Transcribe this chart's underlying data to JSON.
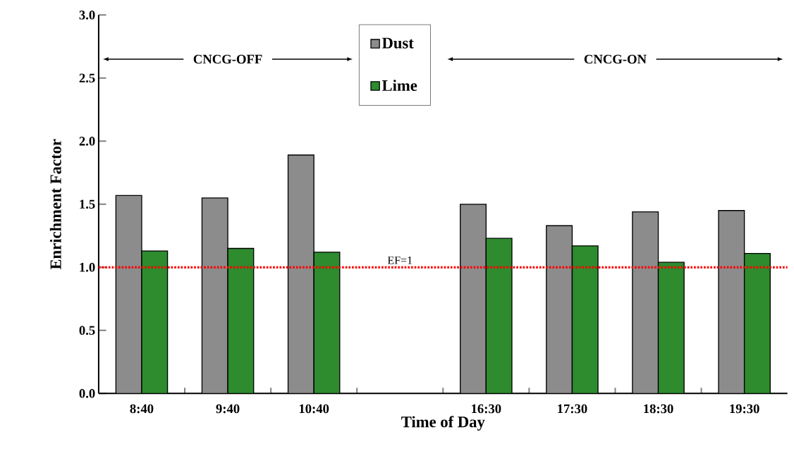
{
  "chart_data": {
    "type": "bar",
    "xlabel": "Time of Day",
    "ylabel": "Enrichment Factor",
    "categories": [
      "8:40",
      "9:40",
      "10:40",
      null,
      "16:30",
      "17:30",
      "18:30",
      "19:30"
    ],
    "series": [
      {
        "name": "Dust",
        "color": "#8c8c8c",
        "values": [
          1.57,
          1.55,
          1.89,
          null,
          1.5,
          1.33,
          1.44,
          1.45
        ]
      },
      {
        "name": "Lime",
        "color": "#2e8b2e",
        "values": [
          1.13,
          1.15,
          1.12,
          null,
          1.23,
          1.17,
          1.04,
          1.11
        ]
      }
    ],
    "ylim": [
      0,
      3.0
    ],
    "yticks": [
      {
        "value": 0,
        "label": "0.0"
      },
      {
        "value": 0.5,
        "label": "0.5"
      },
      {
        "value": 1.0,
        "label": "1.0"
      },
      {
        "value": 1.5,
        "label": "1.5"
      },
      {
        "value": 2.0,
        "label": "2.0"
      },
      {
        "value": 2.5,
        "label": "2.5"
      },
      {
        "value": 3.0,
        "label": "3.0"
      }
    ],
    "ref_lines": [
      {
        "axis": "y",
        "value": 1.0,
        "label": "EF=1",
        "color": "#ff0000",
        "line_style": "dotted"
      }
    ],
    "annotations": [
      "CNCG-OFF",
      "CNCG-ON"
    ],
    "legend": "top",
    "grid": false
  }
}
